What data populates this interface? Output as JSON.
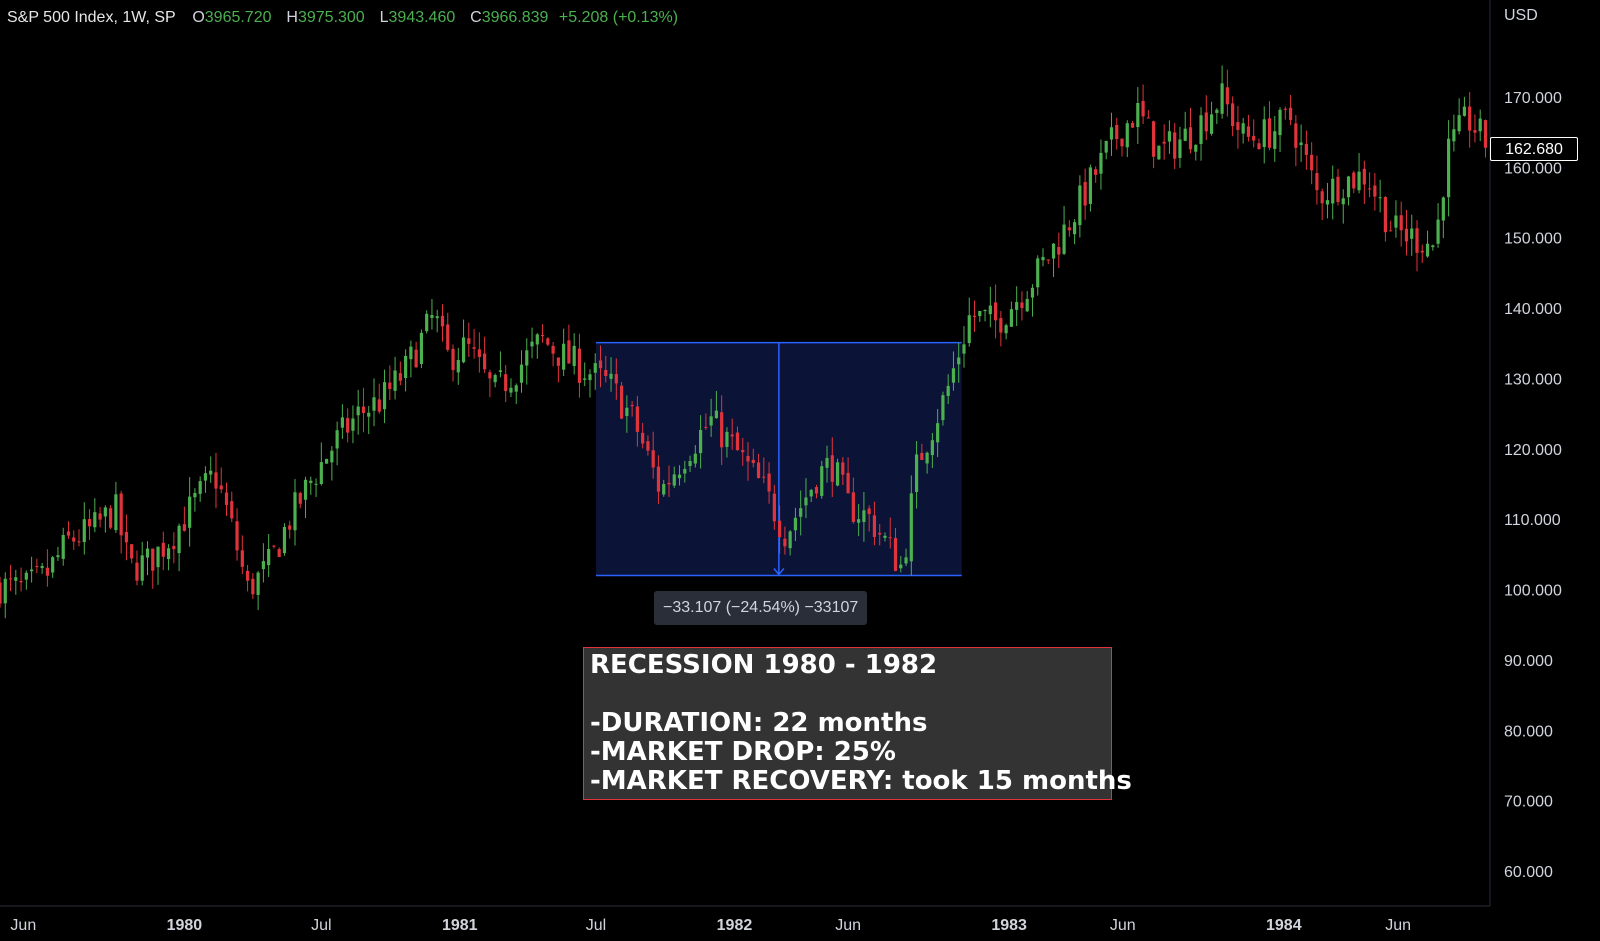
{
  "legend": {
    "symbol": "S&P 500 Index, 1W, SP",
    "o_label": "O",
    "o_value": "3965.720",
    "h_label": "H",
    "h_value": "3975.300",
    "l_label": "L",
    "l_value": "3943.460",
    "c_label": "C",
    "c_value": "3966.839",
    "change": "+5.208 (+0.13%)"
  },
  "price_axis": {
    "currency": "USD",
    "last_price_label": "162.680"
  },
  "measure": {
    "label": "−33.107 (−24.54%) −33107"
  },
  "note": {
    "title": "RECESSION 1980 - 1982",
    "lines": [
      "-DURATION: 22 months",
      "-MARKET DROP: 25%",
      "-MARKET RECOVERY: took 15 months"
    ]
  },
  "colors": {
    "up": "#26a69a",
    "down": "#ef5350",
    "up_candle": "#4caf50",
    "down_candle": "#e0343c",
    "measure_fill": "#0b1437",
    "measure_line": "#2962ff",
    "note_border": "#e0343c"
  },
  "chart_data": {
    "type": "candlestick",
    "title": "S&P 500 Index, 1W, SP",
    "xlabel": "",
    "ylabel": "",
    "y_axis_ticks": [
      "60.000",
      "70.000",
      "80.000",
      "90.000",
      "100.000",
      "110.000",
      "120.000",
      "130.000",
      "140.000",
      "150.000",
      "160.000",
      "170.000"
    ],
    "ylim": [
      55,
      183
    ],
    "x_axis_ticks": [
      {
        "date": "1979-06-01",
        "label": "Jun",
        "bold": false
      },
      {
        "date": "1980-01-01",
        "label": "1980",
        "bold": true
      },
      {
        "date": "1980-07-01",
        "label": "Jul",
        "bold": false
      },
      {
        "date": "1981-01-01",
        "label": "1981",
        "bold": true
      },
      {
        "date": "1981-07-01",
        "label": "Jul",
        "bold": false
      },
      {
        "date": "1982-01-01",
        "label": "1982",
        "bold": true
      },
      {
        "date": "1982-06-01",
        "label": "Jun",
        "bold": false
      },
      {
        "date": "1983-01-01",
        "label": "1983",
        "bold": true
      },
      {
        "date": "1983-06-01",
        "label": "Jun",
        "bold": false
      },
      {
        "date": "1984-01-01",
        "label": "1984",
        "bold": true
      },
      {
        "date": "1984-06-01",
        "label": "Jun",
        "bold": false
      }
    ],
    "xlim": [
      "1979-05-01",
      "1984-10-01"
    ],
    "series": [
      {
        "close_path": [
          [
            "1979-05-01",
            100.5
          ],
          [
            "1979-06-01",
            100.0
          ],
          [
            "1979-07-01",
            102.0
          ],
          [
            "1979-08-01",
            107.0
          ],
          [
            "1979-09-01",
            108.5
          ],
          [
            "1979-10-01",
            111.5
          ],
          [
            "1979-10-20",
            103.0
          ],
          [
            "1979-11-15",
            104.0
          ],
          [
            "1979-12-15",
            107.5
          ],
          [
            "1980-02-10",
            116.5
          ],
          [
            "1980-03-01",
            110.0
          ],
          [
            "1980-03-25",
            100.0
          ],
          [
            "1980-04-20",
            103.0
          ],
          [
            "1980-05-20",
            110.0
          ],
          [
            "1980-06-20",
            116.0
          ],
          [
            "1980-07-20",
            121.0
          ],
          [
            "1980-08-20",
            125.0
          ],
          [
            "1980-09-20",
            127.0
          ],
          [
            "1980-10-20",
            131.0
          ],
          [
            "1980-11-28",
            139.0
          ],
          [
            "1980-12-15",
            133.0
          ],
          [
            "1981-01-10",
            134.5
          ],
          [
            "1981-02-15",
            128.0
          ],
          [
            "1981-03-15",
            131.0
          ],
          [
            "1981-04-20",
            135.5
          ],
          [
            "1981-05-20",
            133.0
          ],
          [
            "1981-06-20",
            131.0
          ],
          [
            "1981-07-20",
            129.0
          ],
          [
            "1981-08-20",
            124.0
          ],
          [
            "1981-09-25",
            114.0
          ],
          [
            "1981-11-01",
            120.0
          ],
          [
            "1981-12-01",
            124.0
          ],
          [
            "1982-01-01",
            120.0
          ],
          [
            "1982-02-10",
            114.0
          ],
          [
            "1982-03-10",
            108.0
          ],
          [
            "1982-04-20",
            116.0
          ],
          [
            "1982-05-10",
            118.0
          ],
          [
            "1982-06-01",
            112.0
          ],
          [
            "1982-07-01",
            110.0
          ],
          [
            "1982-08-12",
            103.0
          ],
          [
            "1982-09-01",
            118.0
          ],
          [
            "1982-10-10",
            128.0
          ],
          [
            "1982-11-10",
            139.0
          ],
          [
            "1982-12-15",
            138.0
          ],
          [
            "1983-02-01",
            144.0
          ],
          [
            "1983-03-10",
            150.0
          ],
          [
            "1983-04-20",
            158.0
          ],
          [
            "1983-05-20",
            164.0
          ],
          [
            "1983-06-20",
            168.0
          ],
          [
            "1983-07-20",
            162.0
          ],
          [
            "1983-09-01",
            165.0
          ],
          [
            "1983-10-10",
            170.0
          ],
          [
            "1983-11-10",
            164.0
          ],
          [
            "1983-12-15",
            165.0
          ],
          [
            "1984-01-10",
            167.0
          ],
          [
            "1984-02-15",
            156.0
          ],
          [
            "1984-03-20",
            158.0
          ],
          [
            "1984-04-20",
            159.0
          ],
          [
            "1984-05-25",
            151.0
          ],
          [
            "1984-07-20",
            149.0
          ],
          [
            "1984-08-05",
            162.0
          ],
          [
            "1984-09-01",
            167.0
          ],
          [
            "1984-10-01",
            162.68
          ]
        ]
      }
    ],
    "annotations": [
      {
        "type": "price_range_measure",
        "from_date": "1981-07-01",
        "to_date": "1982-10-30",
        "top": 135.1,
        "bottom": 102.0,
        "label": "−33.107 (−24.54%) −33107"
      },
      {
        "type": "note",
        "text": "RECESSION 1980 - 1982"
      }
    ]
  }
}
